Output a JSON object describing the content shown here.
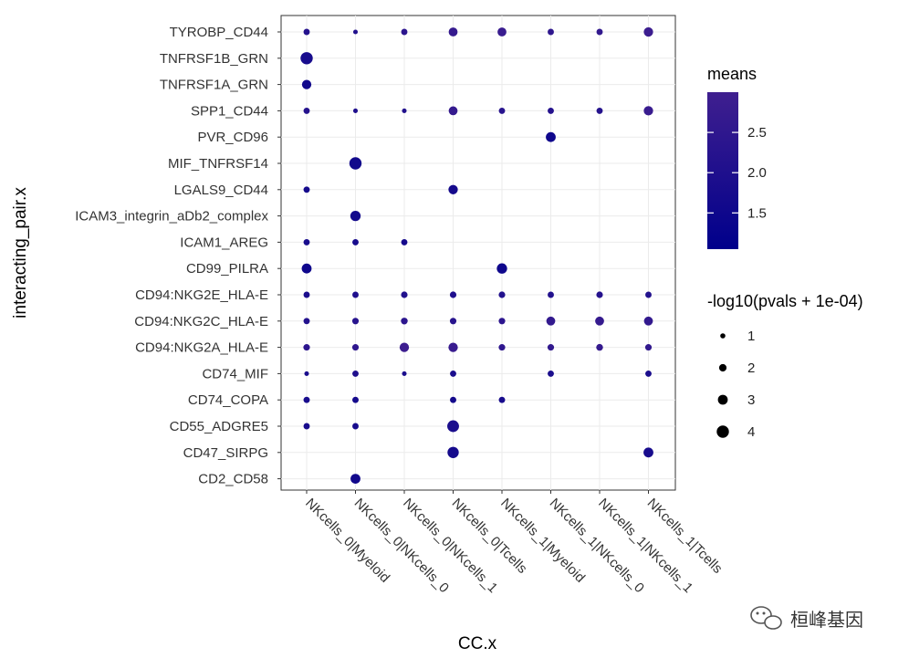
{
  "chart_data": {
    "type": "scatter",
    "subtype": "dot-plot",
    "xlabel": "CC.x",
    "ylabel": "interacting_pair.x",
    "categories_x": [
      "NKcells_0|Myeloid",
      "NKcells_0|NKcells_0",
      "NKcells_0|NKcells_1",
      "NKcells_0|Tcells",
      "NKcells_1|Myeloid",
      "NKcells_1|NKcells_0",
      "NKcells_1|NKcells_1",
      "NKcells_1|Tcells"
    ],
    "categories_y": [
      "TYROBP_CD44",
      "TNFRSF1B_GRN",
      "TNFRSF1A_GRN",
      "SPP1_CD44",
      "PVR_CD96",
      "MIF_TNFRSF14",
      "LGALS9_CD44",
      "ICAM3_integrin_aDb2_complex",
      "ICAM1_AREG",
      "CD99_PILRA",
      "CD94:NKG2E_HLA-E",
      "CD94:NKG2C_HLA-E",
      "CD94:NKG2A_HLA-E",
      "CD74_MIF",
      "CD74_COPA",
      "CD55_ADGRE5",
      "CD47_SIRPG",
      "CD2_CD58"
    ],
    "points": [
      {
        "y": "TYROBP_CD44",
        "x": "NKcells_0|Myeloid",
        "size": 1.5,
        "means": 2.2
      },
      {
        "y": "TYROBP_CD44",
        "x": "NKcells_0|NKcells_0",
        "size": 0.8,
        "means": 2.1
      },
      {
        "y": "TYROBP_CD44",
        "x": "NKcells_0|NKcells_1",
        "size": 1.5,
        "means": 2.4
      },
      {
        "y": "TYROBP_CD44",
        "x": "NKcells_0|Tcells",
        "size": 2.6,
        "means": 2.7
      },
      {
        "y": "TYROBP_CD44",
        "x": "NKcells_1|Myeloid",
        "size": 2.6,
        "means": 2.8
      },
      {
        "y": "TYROBP_CD44",
        "x": "NKcells_1|NKcells_0",
        "size": 1.5,
        "means": 2.5
      },
      {
        "y": "TYROBP_CD44",
        "x": "NKcells_1|NKcells_1",
        "size": 1.5,
        "means": 2.6
      },
      {
        "y": "TYROBP_CD44",
        "x": "NKcells_1|Tcells",
        "size": 2.8,
        "means": 2.9
      },
      {
        "y": "TNFRSF1B_GRN",
        "x": "NKcells_0|Myeloid",
        "size": 4.0,
        "means": 1.8
      },
      {
        "y": "TNFRSF1A_GRN",
        "x": "NKcells_0|Myeloid",
        "size": 2.8,
        "means": 1.6
      },
      {
        "y": "SPP1_CD44",
        "x": "NKcells_0|Myeloid",
        "size": 1.5,
        "means": 2.2
      },
      {
        "y": "SPP1_CD44",
        "x": "NKcells_0|NKcells_0",
        "size": 0.8,
        "means": 2.0
      },
      {
        "y": "SPP1_CD44",
        "x": "NKcells_0|NKcells_1",
        "size": 0.8,
        "means": 2.1
      },
      {
        "y": "SPP1_CD44",
        "x": "NKcells_0|Tcells",
        "size": 2.6,
        "means": 2.7
      },
      {
        "y": "SPP1_CD44",
        "x": "NKcells_1|Myeloid",
        "size": 1.5,
        "means": 2.3
      },
      {
        "y": "SPP1_CD44",
        "x": "NKcells_1|NKcells_0",
        "size": 1.5,
        "means": 2.2
      },
      {
        "y": "SPP1_CD44",
        "x": "NKcells_1|NKcells_1",
        "size": 1.5,
        "means": 2.2
      },
      {
        "y": "SPP1_CD44",
        "x": "NKcells_1|Tcells",
        "size": 2.8,
        "means": 2.8
      },
      {
        "y": "PVR_CD96",
        "x": "NKcells_1|NKcells_0",
        "size": 3.0,
        "means": 1.5
      },
      {
        "y": "MIF_TNFRSF14",
        "x": "NKcells_0|NKcells_0",
        "size": 4.0,
        "means": 1.6
      },
      {
        "y": "LGALS9_CD44",
        "x": "NKcells_0|Myeloid",
        "size": 1.5,
        "means": 1.7
      },
      {
        "y": "LGALS9_CD44",
        "x": "NKcells_0|Tcells",
        "size": 2.8,
        "means": 1.7
      },
      {
        "y": "ICAM3_integrin_aDb2_complex",
        "x": "NKcells_0|NKcells_0",
        "size": 3.2,
        "means": 1.6
      },
      {
        "y": "ICAM1_AREG",
        "x": "NKcells_0|Myeloid",
        "size": 1.5,
        "means": 1.8
      },
      {
        "y": "ICAM1_AREG",
        "x": "NKcells_0|NKcells_0",
        "size": 1.5,
        "means": 1.8
      },
      {
        "y": "ICAM1_AREG",
        "x": "NKcells_0|NKcells_1",
        "size": 1.5,
        "means": 1.7
      },
      {
        "y": "CD99_PILRA",
        "x": "NKcells_0|Myeloid",
        "size": 3.0,
        "means": 1.5
      },
      {
        "y": "CD99_PILRA",
        "x": "NKcells_1|Myeloid",
        "size": 3.2,
        "means": 1.5
      },
      {
        "y": "CD94:NKG2E_HLA-E",
        "x": "NKcells_0|Myeloid",
        "size": 1.5,
        "means": 1.9
      },
      {
        "y": "CD94:NKG2E_HLA-E",
        "x": "NKcells_0|NKcells_0",
        "size": 1.5,
        "means": 2.0
      },
      {
        "y": "CD94:NKG2E_HLA-E",
        "x": "NKcells_0|NKcells_1",
        "size": 1.6,
        "means": 2.1
      },
      {
        "y": "CD94:NKG2E_HLA-E",
        "x": "NKcells_0|Tcells",
        "size": 1.6,
        "means": 2.0
      },
      {
        "y": "CD94:NKG2E_HLA-E",
        "x": "NKcells_1|Myeloid",
        "size": 1.6,
        "means": 2.1
      },
      {
        "y": "CD94:NKG2E_HLA-E",
        "x": "NKcells_1|NKcells_0",
        "size": 1.5,
        "means": 2.1
      },
      {
        "y": "CD94:NKG2E_HLA-E",
        "x": "NKcells_1|NKcells_1",
        "size": 1.6,
        "means": 2.2
      },
      {
        "y": "CD94:NKG2E_HLA-E",
        "x": "NKcells_1|Tcells",
        "size": 1.5,
        "means": 2.1
      },
      {
        "y": "CD94:NKG2C_HLA-E",
        "x": "NKcells_0|Myeloid",
        "size": 1.5,
        "means": 2.1
      },
      {
        "y": "CD94:NKG2C_HLA-E",
        "x": "NKcells_0|NKcells_0",
        "size": 1.6,
        "means": 2.3
      },
      {
        "y": "CD94:NKG2C_HLA-E",
        "x": "NKcells_0|NKcells_1",
        "size": 1.7,
        "means": 2.4
      },
      {
        "y": "CD94:NKG2C_HLA-E",
        "x": "NKcells_0|Tcells",
        "size": 1.6,
        "means": 2.3
      },
      {
        "y": "CD94:NKG2C_HLA-E",
        "x": "NKcells_1|Myeloid",
        "size": 1.6,
        "means": 2.4
      },
      {
        "y": "CD94:NKG2C_HLA-E",
        "x": "NKcells_1|NKcells_0",
        "size": 2.6,
        "means": 2.6
      },
      {
        "y": "CD94:NKG2C_HLA-E",
        "x": "NKcells_1|NKcells_1",
        "size": 2.6,
        "means": 2.7
      },
      {
        "y": "CD94:NKG2C_HLA-E",
        "x": "NKcells_1|Tcells",
        "size": 2.6,
        "means": 2.6
      },
      {
        "y": "CD94:NKG2A_HLA-E",
        "x": "NKcells_0|Myeloid",
        "size": 1.6,
        "means": 2.4
      },
      {
        "y": "CD94:NKG2A_HLA-E",
        "x": "NKcells_0|NKcells_0",
        "size": 1.6,
        "means": 2.5
      },
      {
        "y": "CD94:NKG2A_HLA-E",
        "x": "NKcells_0|NKcells_1",
        "size": 2.8,
        "means": 2.9
      },
      {
        "y": "CD94:NKG2A_HLA-E",
        "x": "NKcells_0|Tcells",
        "size": 2.8,
        "means": 2.8
      },
      {
        "y": "CD94:NKG2A_HLA-E",
        "x": "NKcells_1|Myeloid",
        "size": 1.6,
        "means": 2.5
      },
      {
        "y": "CD94:NKG2A_HLA-E",
        "x": "NKcells_1|NKcells_0",
        "size": 1.6,
        "means": 2.6
      },
      {
        "y": "CD94:NKG2A_HLA-E",
        "x": "NKcells_1|NKcells_1",
        "size": 1.7,
        "means": 2.7
      },
      {
        "y": "CD94:NKG2A_HLA-E",
        "x": "NKcells_1|Tcells",
        "size": 1.6,
        "means": 2.6
      },
      {
        "y": "CD74_MIF",
        "x": "NKcells_0|Myeloid",
        "size": 0.8,
        "means": 1.9
      },
      {
        "y": "CD74_MIF",
        "x": "NKcells_0|NKcells_0",
        "size": 1.5,
        "means": 2.0
      },
      {
        "y": "CD74_MIF",
        "x": "NKcells_0|NKcells_1",
        "size": 0.8,
        "means": 1.9
      },
      {
        "y": "CD74_MIF",
        "x": "NKcells_0|Tcells",
        "size": 1.5,
        "means": 1.9
      },
      {
        "y": "CD74_MIF",
        "x": "NKcells_1|NKcells_0",
        "size": 1.5,
        "means": 1.9
      },
      {
        "y": "CD74_MIF",
        "x": "NKcells_1|Tcells",
        "size": 1.5,
        "means": 1.9
      },
      {
        "y": "CD74_COPA",
        "x": "NKcells_0|Myeloid",
        "size": 1.5,
        "means": 1.8
      },
      {
        "y": "CD74_COPA",
        "x": "NKcells_0|NKcells_0",
        "size": 1.5,
        "means": 1.7
      },
      {
        "y": "CD74_COPA",
        "x": "NKcells_0|Tcells",
        "size": 1.5,
        "means": 1.7
      },
      {
        "y": "CD74_COPA",
        "x": "NKcells_1|Myeloid",
        "size": 1.5,
        "means": 1.8
      },
      {
        "y": "CD55_ADGRE5",
        "x": "NKcells_0|Myeloid",
        "size": 1.5,
        "means": 1.8
      },
      {
        "y": "CD55_ADGRE5",
        "x": "NKcells_0|NKcells_0",
        "size": 1.5,
        "means": 1.8
      },
      {
        "y": "CD55_ADGRE5",
        "x": "NKcells_0|Tcells",
        "size": 3.8,
        "means": 1.9
      },
      {
        "y": "CD47_SIRPG",
        "x": "NKcells_0|Tcells",
        "size": 3.6,
        "means": 1.7
      },
      {
        "y": "CD47_SIRPG",
        "x": "NKcells_1|Tcells",
        "size": 3.0,
        "means": 1.8
      },
      {
        "y": "CD2_CD58",
        "x": "NKcells_0|NKcells_0",
        "size": 3.0,
        "means": 1.6
      }
    ],
    "color_legend": {
      "title": "means",
      "ticks": [
        1.5,
        2.0,
        2.5
      ],
      "tick_labels": [
        "1.5",
        "2.0",
        "2.5"
      ],
      "range": [
        1.05,
        3.0
      ],
      "low_color": "#00008B",
      "high_color": "#3F1F8F"
    },
    "size_legend": {
      "title": "-log10(pvals + 1e-04)",
      "values": [
        1,
        2,
        3,
        4
      ],
      "labels": [
        "1",
        "2",
        "3",
        "4"
      ]
    }
  },
  "watermark": {
    "text": "桓峰基因",
    "icon": "wechat-icon"
  }
}
